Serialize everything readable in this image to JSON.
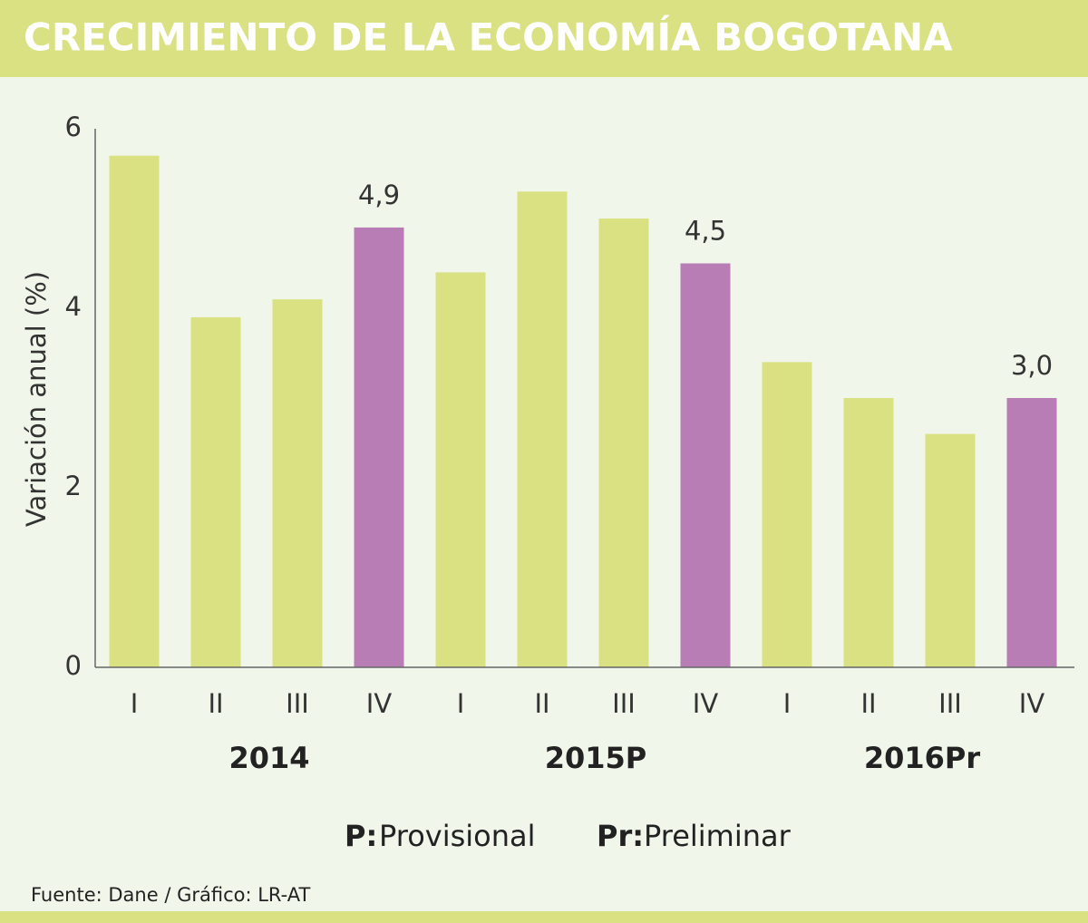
{
  "chart_data": {
    "type": "bar",
    "title": "CRECIMIENTO DE LA ECONOMÍA BOGOTANA",
    "y_label": "Variación anual (%)",
    "categories": [
      "I",
      "II",
      "III",
      "IV",
      "I",
      "II",
      "III",
      "IV",
      "I",
      "II",
      "III",
      "IV"
    ],
    "groups": [
      "2014",
      "2015P",
      "2016Pr"
    ],
    "values": [
      5.7,
      3.9,
      4.1,
      4.9,
      4.4,
      5.3,
      5.0,
      4.5,
      3.4,
      3.0,
      2.6,
      3.0
    ],
    "value_labels": [
      null,
      null,
      null,
      "4,9",
      null,
      null,
      null,
      "4,5",
      null,
      null,
      null,
      "3,0"
    ],
    "colors": [
      "#d9e183",
      "#d9e183",
      "#d9e183",
      "#b87db4",
      "#d9e183",
      "#d9e183",
      "#d9e183",
      "#b87db4",
      "#d9e183",
      "#d9e183",
      "#d9e183",
      "#b87db4"
    ],
    "ylim": [
      0,
      6
    ],
    "yticks": [
      0,
      2,
      4,
      6
    ],
    "grid": false,
    "notes": [
      {
        "key": "P:",
        "text": "Provisional"
      },
      {
        "key": "Pr:",
        "text": "Preliminar"
      }
    ],
    "source": "Fuente: Dane / Gráfico: LR-AT"
  }
}
